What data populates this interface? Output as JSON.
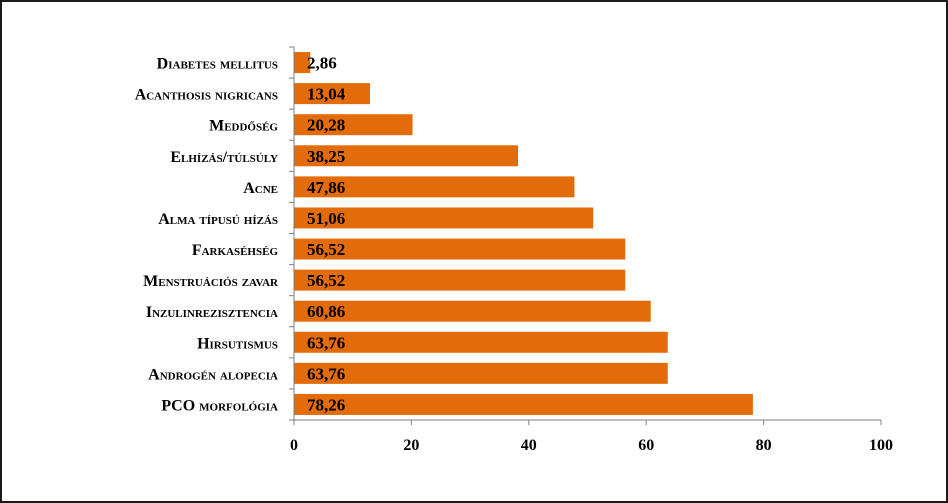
{
  "chart_data": {
    "type": "bar",
    "orientation": "horizontal",
    "categories": [
      "Diabetes mellitus",
      "Acanthosis nigricans",
      "Meddőség",
      "Elhízás/túlsúly",
      "Acne",
      "Alma típusú hízás",
      "Farkaséhség",
      "Menstruációs zavar",
      "Inzulinrezisztencia",
      "Hirsutismus",
      "Androgén alopecia",
      "PCO morfológia"
    ],
    "values": [
      2.86,
      13.04,
      20.28,
      38.25,
      47.86,
      51.06,
      56.52,
      56.52,
      60.86,
      63.76,
      63.76,
      78.26
    ],
    "value_labels": [
      "2,86",
      "13,04",
      "20,28",
      "38,25",
      "47,86",
      "51,06",
      "56,52",
      "56,52",
      "60,86",
      "63,76",
      "63,76",
      "78,26"
    ],
    "title": "",
    "xlabel": "",
    "ylabel": "",
    "xlim": [
      0,
      100
    ],
    "xticks": [
      0,
      20,
      40,
      60,
      80,
      100
    ],
    "xtick_labels": [
      "0",
      "20",
      "40",
      "60",
      "80",
      "100"
    ],
    "grid": false,
    "legend": "none",
    "bar_color": "#E36C0A",
    "bar_border_color": "#ffffff"
  }
}
